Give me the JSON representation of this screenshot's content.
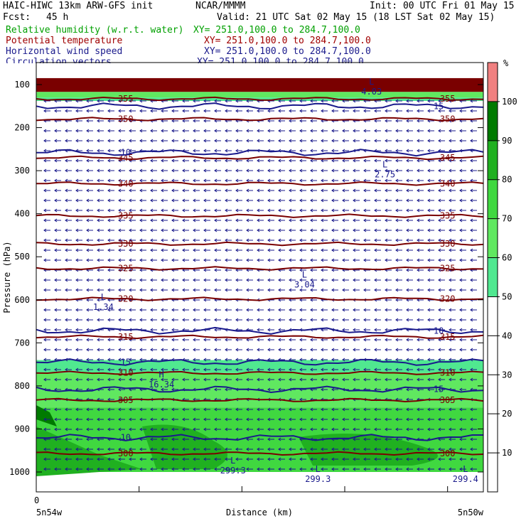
{
  "header": {
    "model": "HAIC-HIWC 13km ARW-GFS init",
    "center": "NCAR/MMMM",
    "init": "Init: 00 UTC Fri 01 May 15",
    "fcst_label": "Fcst:",
    "fcst_value": "45 h",
    "valid": "Valid: 21 UTC Sat 02 May 15 (18 LST Sat 02 May 15)",
    "fields": [
      {
        "name": "Relative humidity (w.r.t. water)",
        "xy": "XY= 251.0,100.0 to 284.7,100.0",
        "color": "#00a000"
      },
      {
        "name": "Potential temperature",
        "xy": "XY= 251.0,100.0 to 284.7,100.0",
        "color": "#a00000"
      },
      {
        "name": "Horizontal wind speed",
        "xy": "XY= 251.0,100.0 to 284.7,100.0",
        "color": "#1a1a8c"
      },
      {
        "name": "Circulation vectors",
        "xy": "XY= 251.0,100.0 to 284.7,100.0",
        "color": "#1a1a8c"
      }
    ]
  },
  "chart_data": {
    "type": "heatmap",
    "ylabel": "Pressure (hPa)",
    "xlabel": "Distance (km)",
    "x_start_label": "5n54w",
    "x_end_label": "5n50w",
    "x_zero_label": "0",
    "y_ticks": [
      100,
      200,
      300,
      400,
      500,
      600,
      700,
      800,
      900,
      1000
    ],
    "colorbar": {
      "unit": "%",
      "ticks": [
        10,
        20,
        30,
        40,
        50,
        60,
        70,
        80,
        90,
        100
      ],
      "levels": [
        {
          "from": 50,
          "to": 60,
          "color": "#50e890"
        },
        {
          "from": 60,
          "to": 70,
          "color": "#60e860"
        },
        {
          "from": 70,
          "to": 80,
          "color": "#40d840"
        },
        {
          "from": 80,
          "to": 90,
          "color": "#20b020"
        },
        {
          "from": 90,
          "to": 100,
          "color": "#007a00"
        },
        {
          "from": 100,
          "to": 110,
          "color": "#f08080"
        }
      ]
    },
    "rh_bands": [
      {
        "p_top": 85,
        "p_bottom": 117,
        "color": "#7a0000"
      },
      {
        "p_top": 117,
        "p_bottom": 130,
        "color": "#60e860"
      },
      {
        "p_top": 130,
        "p_bottom": 138,
        "color": "#50e890"
      },
      {
        "p_top": 740,
        "p_bottom": 770,
        "color": "#50e890"
      },
      {
        "p_top": 770,
        "p_bottom": 850,
        "color": "#60e860"
      },
      {
        "p_top": 850,
        "p_bottom": 1000,
        "color": "#40d840"
      }
    ],
    "theta_contours": [
      {
        "label": "355",
        "p": 133
      },
      {
        "label": "350",
        "p": 180
      },
      {
        "label": "345",
        "p": 270
      },
      {
        "label": "340",
        "p": 330
      },
      {
        "label": "335",
        "p": 405
      },
      {
        "label": "330",
        "p": 470
      },
      {
        "label": "325",
        "p": 527
      },
      {
        "label": "320",
        "p": 598
      },
      {
        "label": "315",
        "p": 686
      },
      {
        "label": "310",
        "p": 770
      },
      {
        "label": "305",
        "p": 833
      },
      {
        "label": "300",
        "p": 957
      }
    ],
    "wind_contours": [
      {
        "label": "15",
        "p": 150
      },
      {
        "label": "10",
        "p": 258
      },
      {
        "label": "10",
        "p": 672
      },
      {
        "label": "15",
        "p": 745
      },
      {
        "label": "15",
        "p": 808
      },
      {
        "label": "10",
        "p": 920
      }
    ],
    "annotations": [
      {
        "text": "L",
        "sub": "4.03",
        "x": 0.75,
        "p": 100
      },
      {
        "text": "L",
        "sub": "2.75",
        "x": 0.78,
        "p": 292
      },
      {
        "text": "L",
        "sub": "3.04",
        "x": 0.6,
        "p": 548
      },
      {
        "text": "L",
        "sub": "1.34",
        "x": 0.15,
        "p": 600
      },
      {
        "text": "H",
        "sub": "16.34",
        "x": 0.28,
        "p": 780
      },
      {
        "text": "L",
        "sub": "299.3",
        "x": 0.44,
        "p": 980
      },
      {
        "text": "L",
        "sub": "299.3",
        "x": 0.63,
        "p": 1000
      },
      {
        "text": "L",
        "sub": "299.4",
        "x": 0.96,
        "p": 1000
      }
    ]
  }
}
